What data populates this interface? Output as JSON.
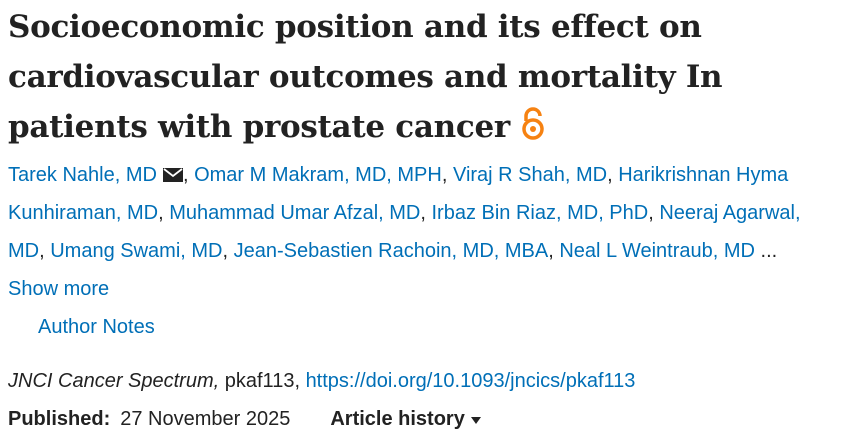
{
  "title": "Socioeconomic position and its effect on cardiovascular outcomes and mortality In patients with prostate cancer",
  "authors": [
    "Tarek Nahle, MD",
    "Omar M Makram, MD, MPH",
    "Viraj R Shah, MD",
    "Harikrishnan Hyma Kunhiraman, MD",
    "Muhammad Umar Afzal, MD",
    "Irbaz Bin Riaz, MD, PhD",
    "Neeraj Agarwal, MD",
    "Umang Swami, MD",
    "Jean-Sebastien Rachoin, MD, MBA",
    "Neal L Weintraub, MD"
  ],
  "ellipsis": "...",
  "show_more": "Show more",
  "author_notes": "Author Notes",
  "journal": "JNCI Cancer Spectrum",
  "article_id": "pkaf113",
  "doi": "https://doi.org/10.1093/jncics/pkaf113",
  "published_label": "Published:",
  "published_date": "27 November 2025",
  "article_history": "Article history"
}
